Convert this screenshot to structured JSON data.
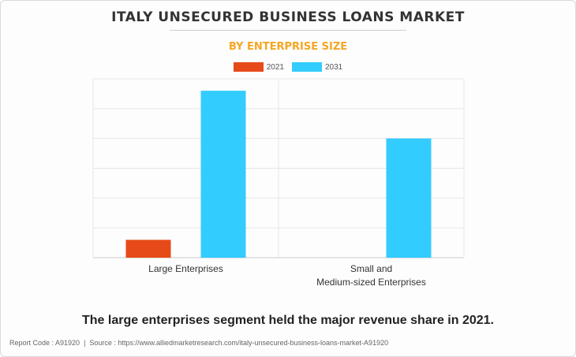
{
  "chart_data": {
    "type": "bar",
    "title": "ITALY UNSECURED BUSINESS LOANS MARKET",
    "subtitle": "BY ENTERPRISE SIZE",
    "categories": [
      "Large Enterprises",
      "Small and\nMedium-sized Enterprises"
    ],
    "series": [
      {
        "name": "2021",
        "color": "#e64a19",
        "values": [
          0.6,
          0
        ]
      },
      {
        "name": "2031",
        "color": "#33ccff",
        "values": [
          5.6,
          4.0
        ]
      }
    ],
    "xlabel": "",
    "ylabel": "",
    "ylim": [
      0,
      6
    ],
    "grid": true,
    "legend": "top-center"
  },
  "takeaway": "The large enterprises segment held the major revenue share in 2021.",
  "footer": {
    "report_code": "Report Code : A91920",
    "source": "Source : https://www.alliedmarketresearch.com/italy-unsecured-business-loans-market-A91920"
  }
}
